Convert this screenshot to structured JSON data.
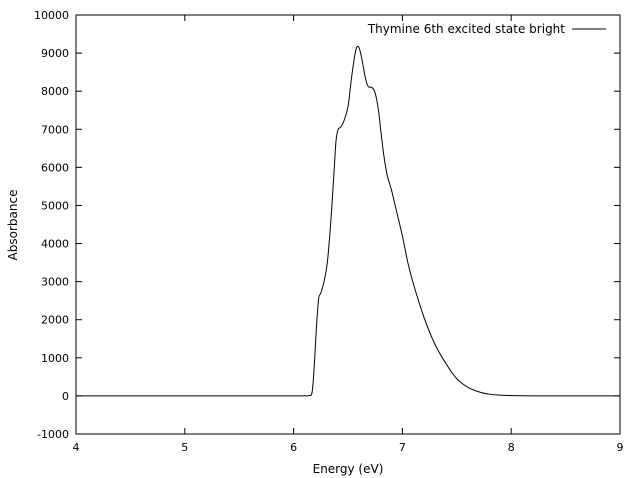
{
  "chart_data": {
    "type": "line",
    "xlabel": "Energy (eV)",
    "ylabel": "Absorbance",
    "xlim": [
      4,
      9
    ],
    "ylim": [
      -1000,
      10000
    ],
    "xticks": [
      4,
      5,
      6,
      7,
      8,
      9
    ],
    "yticks": [
      -1000,
      0,
      1000,
      2000,
      3000,
      4000,
      5000,
      6000,
      7000,
      8000,
      9000,
      10000
    ],
    "grid": false,
    "legend_position": "top-right",
    "series": [
      {
        "name": "Thymine 6th excited state bright",
        "color": "#000000",
        "x": [
          4.0,
          5.0,
          6.0,
          6.1,
          6.14,
          6.17,
          6.19,
          6.21,
          6.23,
          6.25,
          6.28,
          6.31,
          6.34,
          6.37,
          6.39,
          6.41,
          6.43,
          6.46,
          6.5,
          6.53,
          6.56,
          6.58,
          6.6,
          6.62,
          6.64,
          6.66,
          6.68,
          6.7,
          6.72,
          6.75,
          6.78,
          6.8,
          6.83,
          6.86,
          6.9,
          6.95,
          7.0,
          7.05,
          7.1,
          7.2,
          7.3,
          7.4,
          7.5,
          7.6,
          7.7,
          7.8,
          7.9,
          8.0,
          8.2,
          8.5,
          9.0
        ],
        "y": [
          0,
          0,
          0,
          0,
          10,
          100,
          800,
          1800,
          2550,
          2700,
          3000,
          3500,
          4500,
          5800,
          6700,
          7000,
          7050,
          7200,
          7600,
          8300,
          8900,
          9150,
          9150,
          8950,
          8650,
          8350,
          8150,
          8100,
          8100,
          7950,
          7500,
          7000,
          6300,
          5800,
          5400,
          4800,
          4200,
          3500,
          2950,
          2050,
          1350,
          850,
          450,
          230,
          110,
          45,
          20,
          8,
          2,
          0,
          0
        ]
      }
    ]
  }
}
